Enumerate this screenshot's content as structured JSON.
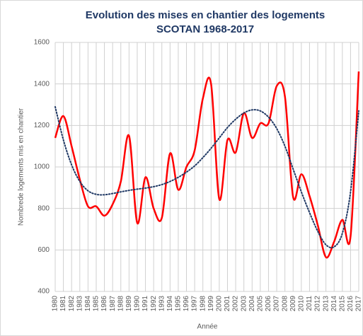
{
  "chart_data": {
    "type": "line",
    "title": "Evolution des mises en chantier des logements",
    "subtitle": "SCOTAN 1968-2017",
    "y_label": "Nombrede logements mis en chantier",
    "x_label": "Année",
    "categories": [
      "1980",
      "1981",
      "1982",
      "1983",
      "1984",
      "1985",
      "1986",
      "1987",
      "1988",
      "1989",
      "1990",
      "1991",
      "1992",
      "1993",
      "1994",
      "1995",
      "1996",
      "1997",
      "1998",
      "1999",
      "2000",
      "2001",
      "2002",
      "2003",
      "2004",
      "2005",
      "2006",
      "2007",
      "2008",
      "2009",
      "2010",
      "2011",
      "2012",
      "2013",
      "2014",
      "2015",
      "2016",
      "2017"
    ],
    "series": [
      {
        "color": "#ff0000",
        "style": "solid",
        "smooth": true,
        "values": [
          1140,
          1245,
          1100,
          940,
          810,
          810,
          765,
          820,
          930,
          1150,
          730,
          950,
          800,
          755,
          1065,
          890,
          1000,
          1080,
          1330,
          1400,
          845,
          1130,
          1070,
          1260,
          1140,
          1210,
          1210,
          1390,
          1340,
          855,
          965,
          860,
          720,
          565,
          640,
          745,
          665,
          1460
        ]
      },
      {
        "color": "#1f3864",
        "style": "dotted",
        "smooth": true,
        "values": [
          1290,
          1130,
          1010,
          930,
          885,
          868,
          866,
          872,
          880,
          887,
          893,
          898,
          905,
          915,
          930,
          950,
          975,
          1005,
          1045,
          1090,
          1140,
          1190,
          1230,
          1260,
          1275,
          1270,
          1240,
          1185,
          1100,
          990,
          880,
          780,
          690,
          625,
          615,
          680,
          880,
          1270
        ]
      }
    ],
    "ylim": [
      400,
      1600
    ],
    "yticks": [
      400,
      600,
      800,
      1000,
      1200,
      1400,
      1600
    ],
    "grid": true
  }
}
